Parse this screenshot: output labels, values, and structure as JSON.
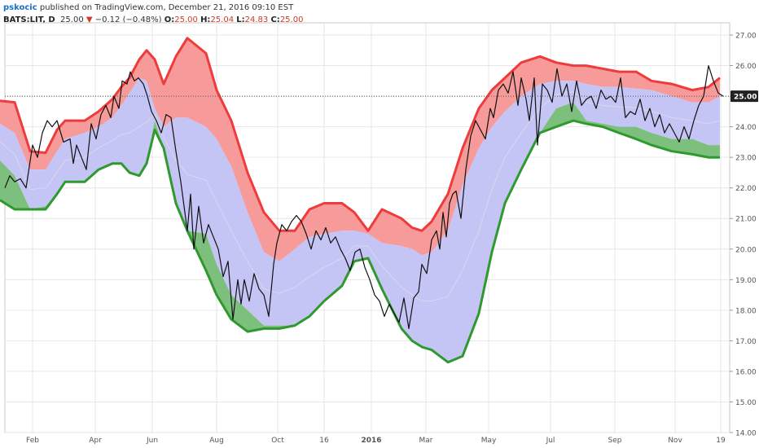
{
  "header": {
    "author": "pskocic",
    "published": "published on TradingView.com, December 21, 2016 09:10 EST",
    "symbol": "BATS:LIT, D",
    "last": "25.00",
    "change_arrow": "▼",
    "change": "−0.12 (−0.48%)",
    "o_label": "O:",
    "o_value": "25.00",
    "h_label": "H:",
    "h_value": "25.04",
    "l_label": "L:",
    "l_value": "24.83",
    "c_label": "C:",
    "c_value": "25.00"
  },
  "chart_data": {
    "type": "line",
    "title": "",
    "xlabel": "",
    "ylabel": "",
    "ylim": [
      14.0,
      27.4
    ],
    "y_ticks": [
      "27.00",
      "26.00",
      "25.00",
      "24.00",
      "23.00",
      "22.00",
      "21.00",
      "20.00",
      "19.00",
      "18.00",
      "17.00",
      "16.00",
      "15.00",
      "14.00"
    ],
    "x_tick_labels": [
      "Feb",
      "Apr",
      "Jun",
      "Aug",
      "Oct",
      "16",
      "2016",
      "Mar",
      "May",
      "Jul",
      "Sep",
      "Nov",
      "19"
    ],
    "last_price_label": "25.00",
    "grid": true,
    "colors": {
      "upper": "#ee3b3b",
      "upper_fill": "#f69a9a",
      "middle_fill": "#c4c4f5",
      "lower": "#2e9a2e",
      "lower_fill": "#7dbf7d",
      "price": "#111111"
    },
    "bands": {
      "x": [
        0,
        18,
        37,
        56,
        70,
        80,
        92,
        104,
        121,
        138,
        149,
        159,
        171,
        180,
        190,
        201,
        216,
        230,
        253,
        266,
        284,
        304,
        324,
        343,
        362,
        380,
        398,
        420,
        435,
        452,
        469,
        493,
        506,
        518,
        530,
        550,
        568,
        588,
        604,
        620,
        640,
        663,
        683,
        704,
        720,
        740,
        760,
        781,
        800,
        825,
        850,
        870,
        884
      ],
      "top": [
        24.85,
        24.8,
        23.2,
        23.15,
        23.9,
        24.2,
        24.2,
        24.2,
        24.5,
        24.9,
        25.3,
        25.6,
        26.2,
        26.5,
        26.2,
        25.4,
        26.3,
        26.9,
        26.4,
        25.2,
        24.2,
        22.5,
        21.2,
        20.6,
        20.6,
        21.3,
        21.5,
        21.5,
        21.2,
        20.6,
        21.3,
        21.0,
        20.7,
        20.6,
        20.9,
        21.8,
        23.3,
        24.6,
        25.2,
        25.6,
        26.1,
        26.3,
        26.1,
        26.0,
        26.0,
        25.9,
        25.8,
        25.8,
        25.5,
        25.4,
        25.2,
        25.3,
        25.6
      ],
      "mid": [
        24.1,
        23.8,
        22.6,
        22.6,
        23.2,
        23.6,
        23.7,
        23.8,
        24.0,
        24.3,
        24.7,
        25.1,
        25.6,
        25.5,
        24.6,
        24.0,
        24.3,
        24.3,
        24.0,
        23.6,
        22.7,
        21.2,
        19.9,
        19.6,
        20.0,
        20.4,
        20.5,
        20.6,
        20.6,
        20.5,
        20.2,
        20.1,
        20.0,
        19.8,
        19.9,
        20.6,
        22.1,
        23.3,
        24.0,
        24.5,
        25.0,
        25.4,
        25.5,
        25.5,
        25.4,
        25.3,
        25.3,
        25.25,
        25.2,
        25.0,
        24.8,
        24.8,
        25.0
      ],
      "low": [
        22.9,
        22.4,
        21.3,
        21.4,
        21.8,
        22.2,
        22.2,
        22.2,
        22.6,
        22.8,
        22.8,
        22.5,
        22.4,
        22.8,
        24.2,
        23.3,
        21.5,
        20.6,
        20.5,
        19.5,
        18.5,
        18.0,
        17.5,
        17.5,
        17.5,
        17.8,
        18.3,
        18.8,
        19.6,
        19.7,
        18.7,
        17.4,
        17.0,
        16.8,
        16.7,
        16.3,
        16.5,
        17.9,
        19.9,
        21.5,
        22.6,
        23.8,
        24.6,
        24.8,
        24.2,
        24.1,
        24.0,
        24.0,
        23.8,
        23.6,
        23.6,
        23.4,
        23.4
      ],
      "lower_ext": [
        21.6,
        21.3,
        21.3,
        21.3,
        21.8,
        22.2,
        22.2,
        22.2,
        22.6,
        22.8,
        22.8,
        22.5,
        22.4,
        22.8,
        23.9,
        23.3,
        21.5,
        20.6,
        19.3,
        18.5,
        17.7,
        17.3,
        17.4,
        17.4,
        17.5,
        17.8,
        18.3,
        18.8,
        19.6,
        19.7,
        18.7,
        17.4,
        17.0,
        16.8,
        16.7,
        16.3,
        16.5,
        17.9,
        19.9,
        21.5,
        22.6,
        23.8,
        24.0,
        24.2,
        24.1,
        24.0,
        23.8,
        23.6,
        23.4,
        23.2,
        23.1,
        23.0,
        23.0
      ]
    },
    "price": {
      "x": [
        6,
        12,
        18,
        25,
        32,
        40,
        46,
        52,
        58,
        64,
        70,
        78,
        86,
        90,
        94,
        100,
        106,
        112,
        118,
        124,
        130,
        136,
        140,
        146,
        150,
        156,
        160,
        165,
        170,
        176,
        181,
        186,
        192,
        198,
        204,
        210,
        216,
        222,
        226,
        230,
        234,
        238,
        244,
        250,
        256,
        262,
        268,
        274,
        280,
        286,
        292,
        296,
        300,
        306,
        312,
        318,
        324,
        330,
        336,
        340,
        346,
        352,
        358,
        364,
        370,
        376,
        382,
        388,
        394,
        400,
        406,
        412,
        418,
        424,
        430,
        436,
        442,
        448,
        454,
        460,
        466,
        472,
        478,
        484,
        490,
        496,
        502,
        508,
        514,
        518,
        524,
        530,
        536,
        540,
        544,
        548,
        552,
        556,
        560,
        566,
        572,
        578,
        584,
        590,
        596,
        602,
        606,
        612,
        618,
        624,
        630,
        636,
        640,
        646,
        650,
        656,
        660,
        666,
        672,
        678,
        684,
        690,
        696,
        702,
        708,
        714,
        720,
        726,
        732,
        738,
        744,
        750,
        756,
        762,
        768,
        774,
        780,
        786,
        792,
        798,
        804,
        810,
        816,
        822,
        828,
        834,
        840,
        846,
        852,
        858,
        864,
        870,
        876,
        882,
        888
      ],
      "y": [
        22.0,
        22.4,
        22.2,
        22.3,
        22.0,
        23.4,
        23.0,
        23.8,
        24.2,
        24.0,
        24.2,
        23.5,
        23.6,
        22.8,
        23.4,
        23.0,
        22.6,
        24.1,
        23.6,
        24.4,
        24.7,
        24.3,
        25.0,
        24.6,
        25.5,
        25.4,
        25.8,
        25.5,
        25.6,
        25.4,
        25.0,
        24.5,
        24.2,
        23.8,
        24.4,
        24.3,
        23.2,
        22.2,
        21.4,
        20.6,
        21.8,
        20.0,
        21.4,
        20.2,
        20.8,
        20.4,
        20.0,
        19.1,
        19.6,
        17.7,
        19.0,
        18.2,
        19.0,
        18.3,
        19.2,
        18.7,
        18.5,
        17.8,
        19.5,
        20.2,
        20.8,
        20.6,
        20.9,
        21.1,
        20.9,
        20.5,
        20.0,
        20.6,
        20.3,
        20.7,
        20.2,
        20.4,
        20.0,
        19.7,
        19.3,
        19.9,
        20.0,
        19.4,
        19.0,
        18.5,
        18.3,
        17.8,
        18.2,
        17.9,
        17.6,
        18.4,
        17.4,
        18.4,
        18.6,
        19.5,
        19.2,
        20.3,
        20.6,
        20.0,
        21.2,
        20.4,
        21.5,
        21.8,
        21.9,
        21.0,
        22.6,
        23.7,
        24.2,
        23.9,
        23.6,
        24.6,
        24.3,
        25.2,
        25.4,
        25.1,
        25.8,
        24.7,
        25.6,
        24.9,
        24.2,
        25.6,
        23.4,
        25.4,
        25.2,
        24.8,
        25.9,
        25.0,
        25.4,
        24.5,
        25.5,
        24.7,
        24.9,
        25.0,
        24.6,
        25.2,
        24.9,
        25.0,
        24.8,
        25.6,
        24.3,
        24.5,
        24.4,
        24.9,
        24.2,
        24.6,
        24.0,
        24.4,
        23.8,
        24.1,
        23.8,
        23.5,
        24.0,
        23.6,
        24.2,
        24.7,
        25.0,
        26.0,
        25.5,
        25.1,
        25.0
      ]
    }
  }
}
